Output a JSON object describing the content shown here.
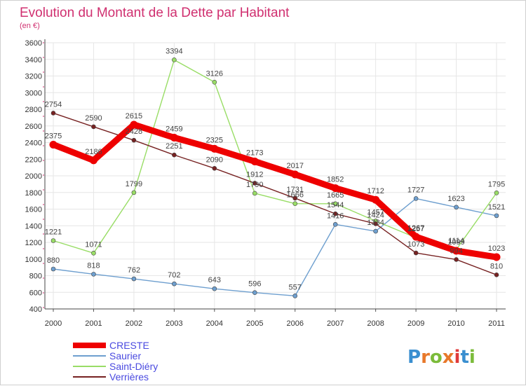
{
  "chart_data": {
    "type": "line",
    "title": "Evolution du Montant de la Dette par Habitant",
    "subtitle": "(en €)",
    "xlabel": "",
    "ylabel": "",
    "x": [
      "2000",
      "2001",
      "2002",
      "2003",
      "2004",
      "2005",
      "2006",
      "2007",
      "2008",
      "2009",
      "2010",
      "2011"
    ],
    "ylim": [
      400,
      3600
    ],
    "yticks": [
      400,
      600,
      800,
      1000,
      1200,
      1400,
      1600,
      1800,
      2000,
      2200,
      2400,
      2600,
      2800,
      3000,
      3200,
      3400,
      3600
    ],
    "grid": true,
    "legend_position": "bottom-left",
    "series": [
      {
        "name": "CRESTE",
        "color": "#ee0000",
        "values": [
          2375,
          2186,
          2615,
          2459,
          2325,
          2173,
          2017,
          1852,
          1712,
          1267,
          1099,
          1023
        ]
      },
      {
        "name": "Saurier",
        "color": "#6e9fcf",
        "values": [
          880,
          818,
          762,
          702,
          643,
          596,
          557,
          1416,
          1334,
          1727,
          1623,
          1521
        ]
      },
      {
        "name": "Saint-Diéry",
        "color": "#99dd66",
        "values": [
          1221,
          1071,
          1799,
          3394,
          3126,
          1790,
          1666,
          1665,
          1457,
          1257,
          1114,
          1795
        ]
      },
      {
        "name": "Verrières",
        "color": "#772222",
        "values": [
          2754,
          2590,
          2428,
          2251,
          2090,
          1912,
          1731,
          1544,
          1424,
          1073,
          994,
          810
        ]
      }
    ]
  },
  "logo": {
    "text": "Proxiti"
  }
}
